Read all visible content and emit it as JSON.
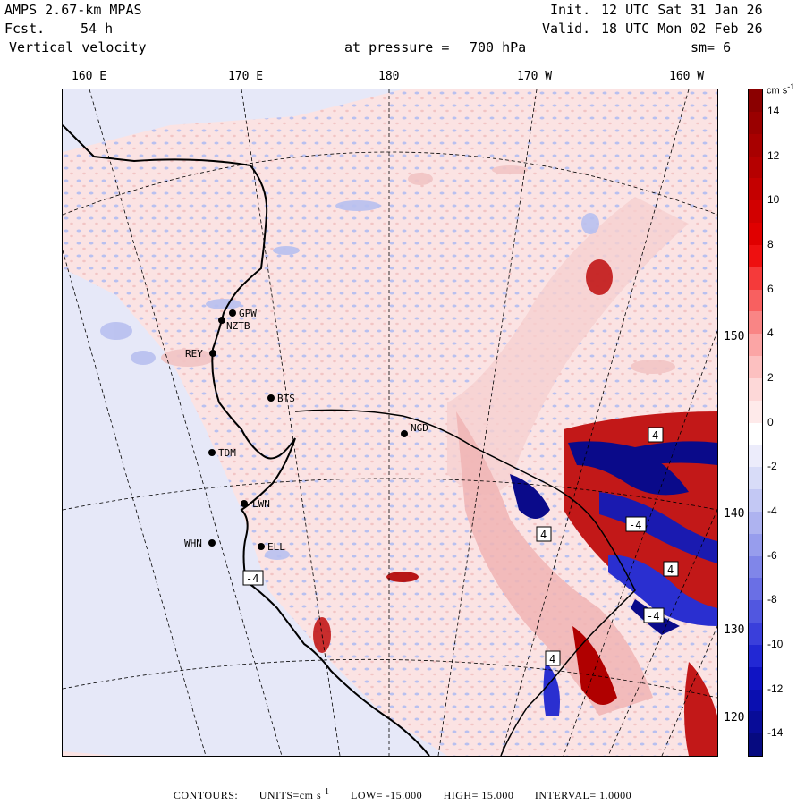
{
  "header": {
    "model": "AMPS 2.67-km MPAS",
    "forecast_label": "Fcst.",
    "forecast_hours": "54 h",
    "field": "Vertical velocity",
    "level_label": "at pressure =",
    "level_value": "700 hPa",
    "init_label": "Init.",
    "init_time": "12 UTC Sat 31 Jan 26",
    "valid_label": "Valid.",
    "valid_time": "18 UTC Mon 02 Feb 26",
    "smoothing": "sm= 6"
  },
  "map": {
    "longitude_labels": [
      "160 E",
      "170 E",
      "180",
      "170 W",
      "160 W"
    ],
    "latitude_labels": [
      "150 W",
      "140 W",
      "130 W",
      "120 W"
    ],
    "stations": [
      {
        "id": "GPW",
        "label": "GPW"
      },
      {
        "id": "NZTB",
        "label": "NZTB"
      },
      {
        "id": "REY",
        "label": "REY"
      },
      {
        "id": "BTS",
        "label": "BTS"
      },
      {
        "id": "NGD",
        "label": "NGD"
      },
      {
        "id": "TDM",
        "label": "TDM"
      },
      {
        "id": "LWN",
        "label": "LWN"
      },
      {
        "id": "WHN",
        "label": "WHN"
      },
      {
        "id": "ELL",
        "label": "ELL"
      }
    ],
    "contour_box_labels": [
      "-4",
      "-4",
      "4",
      "4",
      "4",
      "-4",
      "4"
    ],
    "colors": {
      "positive": "#f2c4c4",
      "strong_positive": "#b00000",
      "negative": "#b8c0f0",
      "strong_negative": "#0a0a8a",
      "background_negative_weak": "#e6e8f8",
      "background_positive_weak": "#fbe3e3"
    }
  },
  "colorbar": {
    "units_label": "cm s",
    "units_exponent": "-1",
    "tick_labels": [
      "14",
      "12",
      "10",
      "8",
      "6",
      "4",
      "2",
      "0",
      "-2",
      "-4",
      "-6",
      "-8",
      "-10",
      "-12",
      "-14"
    ],
    "min": -15,
    "max": 15,
    "interval": 1,
    "colors": [
      "#8b0000",
      "#9a0000",
      "#a80000",
      "#b50000",
      "#c40000",
      "#d20000",
      "#e00000",
      "#ee1010",
      "#f53a3a",
      "#f86060",
      "#f98585",
      "#fba5a5",
      "#fcc0c0",
      "#fdd8d8",
      "#feeaea",
      "#ffffff",
      "#ececfb",
      "#d8dcf8",
      "#c3c8f4",
      "#aeb3f0",
      "#979ded",
      "#8086e9",
      "#6a6fe5",
      "#5157e0",
      "#3a3fdb",
      "#2228d4",
      "#1014c4",
      "#0a0fb0",
      "#080c98",
      "#060a80"
    ]
  },
  "footer": {
    "contours_label": "CONTOURS:",
    "units_text": "UNITS=cm s",
    "units_exponent": "-1",
    "low_text": "LOW= -15.000",
    "high_text": "HIGH= 15.000",
    "interval_text": "INTERVAL= 1.0000"
  }
}
